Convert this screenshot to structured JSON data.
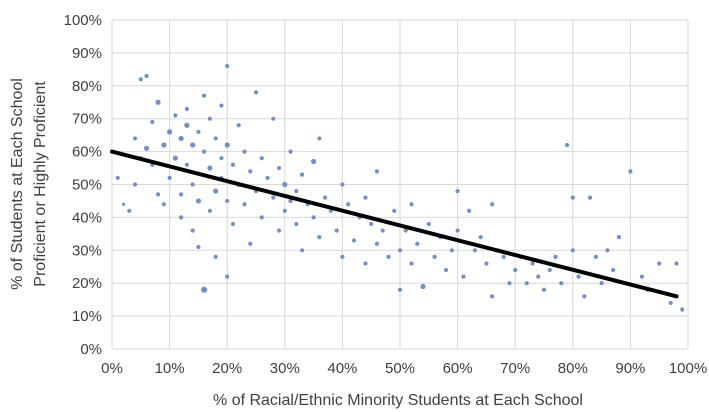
{
  "chart_data": {
    "type": "scatter",
    "title": "",
    "xlabel": "% of Racial/Ethnic Minority Students at Each School",
    "ylabel_lines": [
      "% of Students at Each School",
      "Proficient or Highly Proficient"
    ],
    "xlim": [
      0,
      100
    ],
    "ylim": [
      0,
      100
    ],
    "x_ticks": [
      0,
      10,
      20,
      30,
      40,
      50,
      60,
      70,
      80,
      90,
      100
    ],
    "y_ticks": [
      0,
      10,
      20,
      30,
      40,
      50,
      60,
      70,
      80,
      90,
      100
    ],
    "x_tick_labels": [
      "0%",
      "10%",
      "20%",
      "30%",
      "40%",
      "50%",
      "60%",
      "70%",
      "80%",
      "90%",
      "100%"
    ],
    "y_tick_labels": [
      "0%",
      "10%",
      "20%",
      "30%",
      "40%",
      "50%",
      "60%",
      "70%",
      "80%",
      "90%",
      "100%"
    ],
    "grid": true,
    "trendline": {
      "x": [
        0,
        98
      ],
      "y": [
        60,
        16
      ]
    },
    "series": [
      {
        "color": "#6f8fcf",
        "points": [
          {
            "x": 1,
            "y": 52,
            "s": 3
          },
          {
            "x": 2,
            "y": 44,
            "s": 2
          },
          {
            "x": 3,
            "y": 42,
            "s": 3
          },
          {
            "x": 4,
            "y": 50,
            "s": 3
          },
          {
            "x": 4,
            "y": 64,
            "s": 3
          },
          {
            "x": 5,
            "y": 82,
            "s": 3
          },
          {
            "x": 6,
            "y": 83,
            "s": 3
          },
          {
            "x": 6,
            "y": 61,
            "s": 4
          },
          {
            "x": 5,
            "y": 58,
            "s": 3
          },
          {
            "x": 7,
            "y": 56,
            "s": 3
          },
          {
            "x": 7,
            "y": 69,
            "s": 3
          },
          {
            "x": 8,
            "y": 75,
            "s": 4
          },
          {
            "x": 8,
            "y": 47,
            "s": 3
          },
          {
            "x": 9,
            "y": 44,
            "s": 3
          },
          {
            "x": 9,
            "y": 62,
            "s": 4
          },
          {
            "x": 10,
            "y": 66,
            "s": 4
          },
          {
            "x": 10,
            "y": 52,
            "s": 3
          },
          {
            "x": 11,
            "y": 71,
            "s": 3
          },
          {
            "x": 11,
            "y": 58,
            "s": 4
          },
          {
            "x": 12,
            "y": 64,
            "s": 4
          },
          {
            "x": 12,
            "y": 47,
            "s": 3
          },
          {
            "x": 12,
            "y": 40,
            "s": 3
          },
          {
            "x": 13,
            "y": 68,
            "s": 4
          },
          {
            "x": 13,
            "y": 56,
            "s": 3
          },
          {
            "x": 13,
            "y": 73,
            "s": 3
          },
          {
            "x": 14,
            "y": 62,
            "s": 4
          },
          {
            "x": 14,
            "y": 50,
            "s": 3
          },
          {
            "x": 14,
            "y": 36,
            "s": 3
          },
          {
            "x": 15,
            "y": 66,
            "s": 3
          },
          {
            "x": 15,
            "y": 45,
            "s": 4
          },
          {
            "x": 15,
            "y": 31,
            "s": 3
          },
          {
            "x": 16,
            "y": 60,
            "s": 3
          },
          {
            "x": 16,
            "y": 18,
            "s": 5
          },
          {
            "x": 16,
            "y": 77,
            "s": 3
          },
          {
            "x": 17,
            "y": 55,
            "s": 4
          },
          {
            "x": 17,
            "y": 70,
            "s": 3
          },
          {
            "x": 17,
            "y": 42,
            "s": 3
          },
          {
            "x": 18,
            "y": 64,
            "s": 3
          },
          {
            "x": 18,
            "y": 48,
            "s": 4
          },
          {
            "x": 18,
            "y": 28,
            "s": 3
          },
          {
            "x": 19,
            "y": 58,
            "s": 3
          },
          {
            "x": 19,
            "y": 52,
            "s": 3
          },
          {
            "x": 19,
            "y": 74,
            "s": 3
          },
          {
            "x": 20,
            "y": 86,
            "s": 3
          },
          {
            "x": 20,
            "y": 62,
            "s": 4
          },
          {
            "x": 20,
            "y": 45,
            "s": 3
          },
          {
            "x": 20,
            "y": 22,
            "s": 3
          },
          {
            "x": 21,
            "y": 56,
            "s": 3
          },
          {
            "x": 21,
            "y": 38,
            "s": 3
          },
          {
            "x": 22,
            "y": 68,
            "s": 3
          },
          {
            "x": 22,
            "y": 50,
            "s": 4
          },
          {
            "x": 23,
            "y": 44,
            "s": 3
          },
          {
            "x": 23,
            "y": 60,
            "s": 3
          },
          {
            "x": 24,
            "y": 54,
            "s": 3
          },
          {
            "x": 24,
            "y": 32,
            "s": 3
          },
          {
            "x": 25,
            "y": 78,
            "s": 3
          },
          {
            "x": 25,
            "y": 48,
            "s": 3
          },
          {
            "x": 26,
            "y": 58,
            "s": 3
          },
          {
            "x": 26,
            "y": 40,
            "s": 3
          },
          {
            "x": 27,
            "y": 52,
            "s": 3
          },
          {
            "x": 28,
            "y": 46,
            "s": 3
          },
          {
            "x": 28,
            "y": 70,
            "s": 3
          },
          {
            "x": 29,
            "y": 55,
            "s": 3
          },
          {
            "x": 29,
            "y": 36,
            "s": 3
          },
          {
            "x": 30,
            "y": 50,
            "s": 4
          },
          {
            "x": 30,
            "y": 42,
            "s": 3
          },
          {
            "x": 31,
            "y": 60,
            "s": 3
          },
          {
            "x": 31,
            "y": 45,
            "s": 3
          },
          {
            "x": 32,
            "y": 48,
            "s": 3
          },
          {
            "x": 32,
            "y": 38,
            "s": 3
          },
          {
            "x": 33,
            "y": 53,
            "s": 3
          },
          {
            "x": 33,
            "y": 30,
            "s": 3
          },
          {
            "x": 34,
            "y": 44,
            "s": 3
          },
          {
            "x": 35,
            "y": 57,
            "s": 4
          },
          {
            "x": 35,
            "y": 40,
            "s": 3
          },
          {
            "x": 36,
            "y": 64,
            "s": 3
          },
          {
            "x": 36,
            "y": 34,
            "s": 3
          },
          {
            "x": 37,
            "y": 46,
            "s": 3
          },
          {
            "x": 38,
            "y": 42,
            "s": 3
          },
          {
            "x": 39,
            "y": 36,
            "s": 3
          },
          {
            "x": 40,
            "y": 50,
            "s": 3
          },
          {
            "x": 40,
            "y": 28,
            "s": 3
          },
          {
            "x": 41,
            "y": 44,
            "s": 3
          },
          {
            "x": 42,
            "y": 33,
            "s": 3
          },
          {
            "x": 43,
            "y": 40,
            "s": 3
          },
          {
            "x": 44,
            "y": 46,
            "s": 3
          },
          {
            "x": 44,
            "y": 26,
            "s": 3
          },
          {
            "x": 45,
            "y": 38,
            "s": 3
          },
          {
            "x": 46,
            "y": 54,
            "s": 3
          },
          {
            "x": 46,
            "y": 32,
            "s": 3
          },
          {
            "x": 47,
            "y": 36,
            "s": 3
          },
          {
            "x": 48,
            "y": 28,
            "s": 3
          },
          {
            "x": 49,
            "y": 42,
            "s": 3
          },
          {
            "x": 50,
            "y": 30,
            "s": 3
          },
          {
            "x": 50,
            "y": 18,
            "s": 3
          },
          {
            "x": 51,
            "y": 36,
            "s": 3
          },
          {
            "x": 52,
            "y": 44,
            "s": 3
          },
          {
            "x": 52,
            "y": 26,
            "s": 3
          },
          {
            "x": 53,
            "y": 32,
            "s": 3
          },
          {
            "x": 54,
            "y": 19,
            "s": 4
          },
          {
            "x": 55,
            "y": 38,
            "s": 3
          },
          {
            "x": 56,
            "y": 28,
            "s": 3
          },
          {
            "x": 57,
            "y": 34,
            "s": 3
          },
          {
            "x": 58,
            "y": 24,
            "s": 3
          },
          {
            "x": 59,
            "y": 30,
            "s": 3
          },
          {
            "x": 60,
            "y": 48,
            "s": 3
          },
          {
            "x": 60,
            "y": 36,
            "s": 3
          },
          {
            "x": 61,
            "y": 22,
            "s": 3
          },
          {
            "x": 62,
            "y": 42,
            "s": 3
          },
          {
            "x": 63,
            "y": 30,
            "s": 3
          },
          {
            "x": 64,
            "y": 34,
            "s": 3
          },
          {
            "x": 65,
            "y": 26,
            "s": 3
          },
          {
            "x": 66,
            "y": 16,
            "s": 3
          },
          {
            "x": 66,
            "y": 44,
            "s": 3
          },
          {
            "x": 67,
            "y": 30,
            "s": 3
          },
          {
            "x": 68,
            "y": 28,
            "s": 3
          },
          {
            "x": 69,
            "y": 20,
            "s": 3
          },
          {
            "x": 70,
            "y": 24,
            "s": 3
          },
          {
            "x": 71,
            "y": 28,
            "s": 3
          },
          {
            "x": 72,
            "y": 20,
            "s": 3
          },
          {
            "x": 73,
            "y": 26,
            "s": 3
          },
          {
            "x": 74,
            "y": 22,
            "s": 3
          },
          {
            "x": 75,
            "y": 18,
            "s": 3
          },
          {
            "x": 76,
            "y": 24,
            "s": 3
          },
          {
            "x": 77,
            "y": 28,
            "s": 3
          },
          {
            "x": 78,
            "y": 20,
            "s": 3
          },
          {
            "x": 79,
            "y": 62,
            "s": 3
          },
          {
            "x": 80,
            "y": 30,
            "s": 3
          },
          {
            "x": 80,
            "y": 46,
            "s": 3
          },
          {
            "x": 81,
            "y": 22,
            "s": 3
          },
          {
            "x": 82,
            "y": 16,
            "s": 3
          },
          {
            "x": 83,
            "y": 46,
            "s": 3
          },
          {
            "x": 84,
            "y": 28,
            "s": 3
          },
          {
            "x": 85,
            "y": 20,
            "s": 3
          },
          {
            "x": 86,
            "y": 30,
            "s": 3
          },
          {
            "x": 87,
            "y": 24,
            "s": 3
          },
          {
            "x": 88,
            "y": 34,
            "s": 3
          },
          {
            "x": 89,
            "y": 20,
            "s": 3
          },
          {
            "x": 90,
            "y": 54,
            "s": 3
          },
          {
            "x": 92,
            "y": 22,
            "s": 3
          },
          {
            "x": 93,
            "y": 18,
            "s": 3
          },
          {
            "x": 95,
            "y": 26,
            "s": 3
          },
          {
            "x": 97,
            "y": 14,
            "s": 3
          },
          {
            "x": 98,
            "y": 26,
            "s": 3
          },
          {
            "x": 99,
            "y": 12,
            "s": 3
          }
        ]
      }
    ]
  }
}
